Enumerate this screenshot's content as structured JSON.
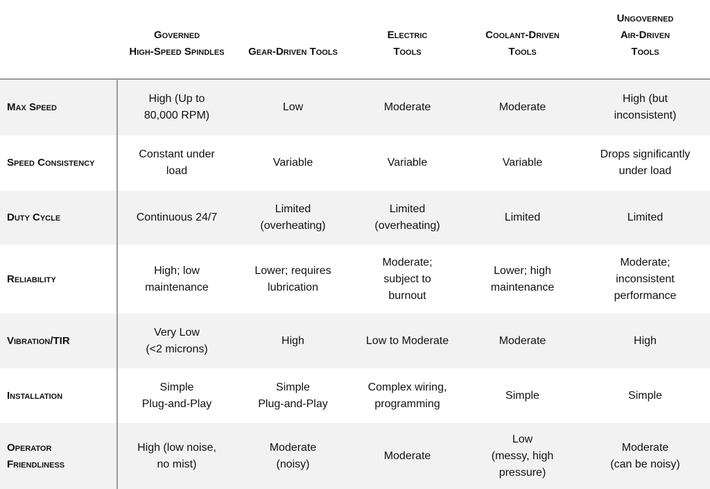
{
  "table": {
    "columns": [
      "Governed\nHigh-Speed Spindles",
      "Gear-Driven Tools",
      "Electric\nTools",
      "Coolant-Driven\nTools",
      "Ungoverned\nAir-Driven\nTools"
    ],
    "rows": [
      {
        "label": "Max Speed",
        "cells": [
          "High (Up to\n80,000 RPM)",
          "Low",
          "Moderate",
          "Moderate",
          "High (but\ninconsistent)"
        ]
      },
      {
        "label": "Speed Consistency",
        "cells": [
          "Constant under\nload",
          "Variable",
          "Variable",
          "Variable",
          "Drops significantly\nunder load"
        ]
      },
      {
        "label": "Duty Cycle",
        "cells": [
          "Continuous 24/7",
          "Limited\n(overheating)",
          "Limited\n(overheating)",
          "Limited",
          "Limited"
        ]
      },
      {
        "label": "Reliability",
        "cells": [
          "High; low\nmaintenance",
          "Lower; requires\nlubrication",
          "Moderate;\nsubject to\nburnout",
          "Lower; high\nmaintenance",
          "Moderate;\ninconsistent\nperformance"
        ]
      },
      {
        "label": "Vibration/TIR",
        "cells": [
          "Very Low\n(<2 microns)",
          "High",
          "Low to Moderate",
          "Moderate",
          "High"
        ]
      },
      {
        "label": "Installation",
        "cells": [
          "Simple\nPlug-and-Play",
          "Simple\nPlug-and-Play",
          "Complex wiring,\nprogramming",
          "Simple",
          "Simple"
        ]
      },
      {
        "label": "Operator\nFriendliness",
        "cells": [
          "High (low noise,\nno mist)",
          "Moderate\n(noisy)",
          "Moderate",
          "Low\n(messy, high\npressure)",
          "Moderate\n(can be noisy)"
        ]
      }
    ]
  }
}
